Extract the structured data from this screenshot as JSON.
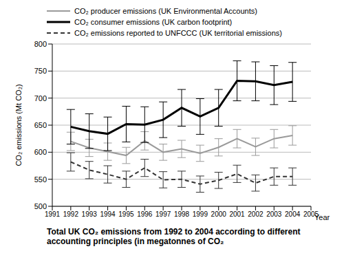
{
  "chart_data": {
    "type": "line",
    "title": "Total UK CO₂ emissions from 1992 to 2004 according to different accounting principles (in megatonnes of CO₂",
    "x_label": "Year",
    "y_label": "CO₂ emissions (Mt CO₂)",
    "x": [
      1992,
      1993,
      1994,
      1995,
      1996,
      1997,
      1998,
      1999,
      2000,
      2001,
      2002,
      2003,
      2004
    ],
    "series": [
      {
        "name": "CO₂ producer emissions (UK Environmental Accounts)",
        "color": "#9a9a9a",
        "line_style": "solid",
        "values": [
          620,
          608,
          601,
          594,
          621,
          600,
          606,
          598,
          609,
          625,
          610,
          625,
          631
        ],
        "errors": [
          17,
          16,
          16,
          15,
          17,
          15,
          16,
          15,
          16,
          17,
          16,
          17,
          18
        ]
      },
      {
        "name": "CO₂ consumer emissions (UK carbon footprint)",
        "color": "#000000",
        "line_style": "solid",
        "values": [
          647,
          639,
          634,
          652,
          651,
          660,
          682,
          666,
          682,
          732,
          731,
          724,
          730
        ],
        "errors": [
          32,
          32,
          31,
          33,
          33,
          33,
          34,
          33,
          34,
          37,
          36,
          36,
          36
        ]
      },
      {
        "name": "CO₂ emissions reported to UNFCCC (UK territorial emissions)",
        "color": "#333333",
        "line_style": "dashed",
        "values": [
          582,
          567,
          559,
          550,
          571,
          549,
          550,
          541,
          548,
          560,
          543,
          555,
          555
        ],
        "errors": [
          17,
          16,
          16,
          15,
          16,
          15,
          15,
          15,
          15,
          16,
          15,
          16,
          16
        ]
      }
    ],
    "xlim": [
      1991,
      2005
    ],
    "xticks": [
      1991,
      1992,
      1993,
      1994,
      1995,
      1996,
      1997,
      1998,
      1999,
      2000,
      2001,
      2002,
      2003,
      2004,
      2005
    ],
    "ylim": [
      500,
      800
    ],
    "yticks": [
      500,
      550,
      600,
      650,
      700,
      750,
      800
    ],
    "grid": true,
    "legend": "top"
  }
}
